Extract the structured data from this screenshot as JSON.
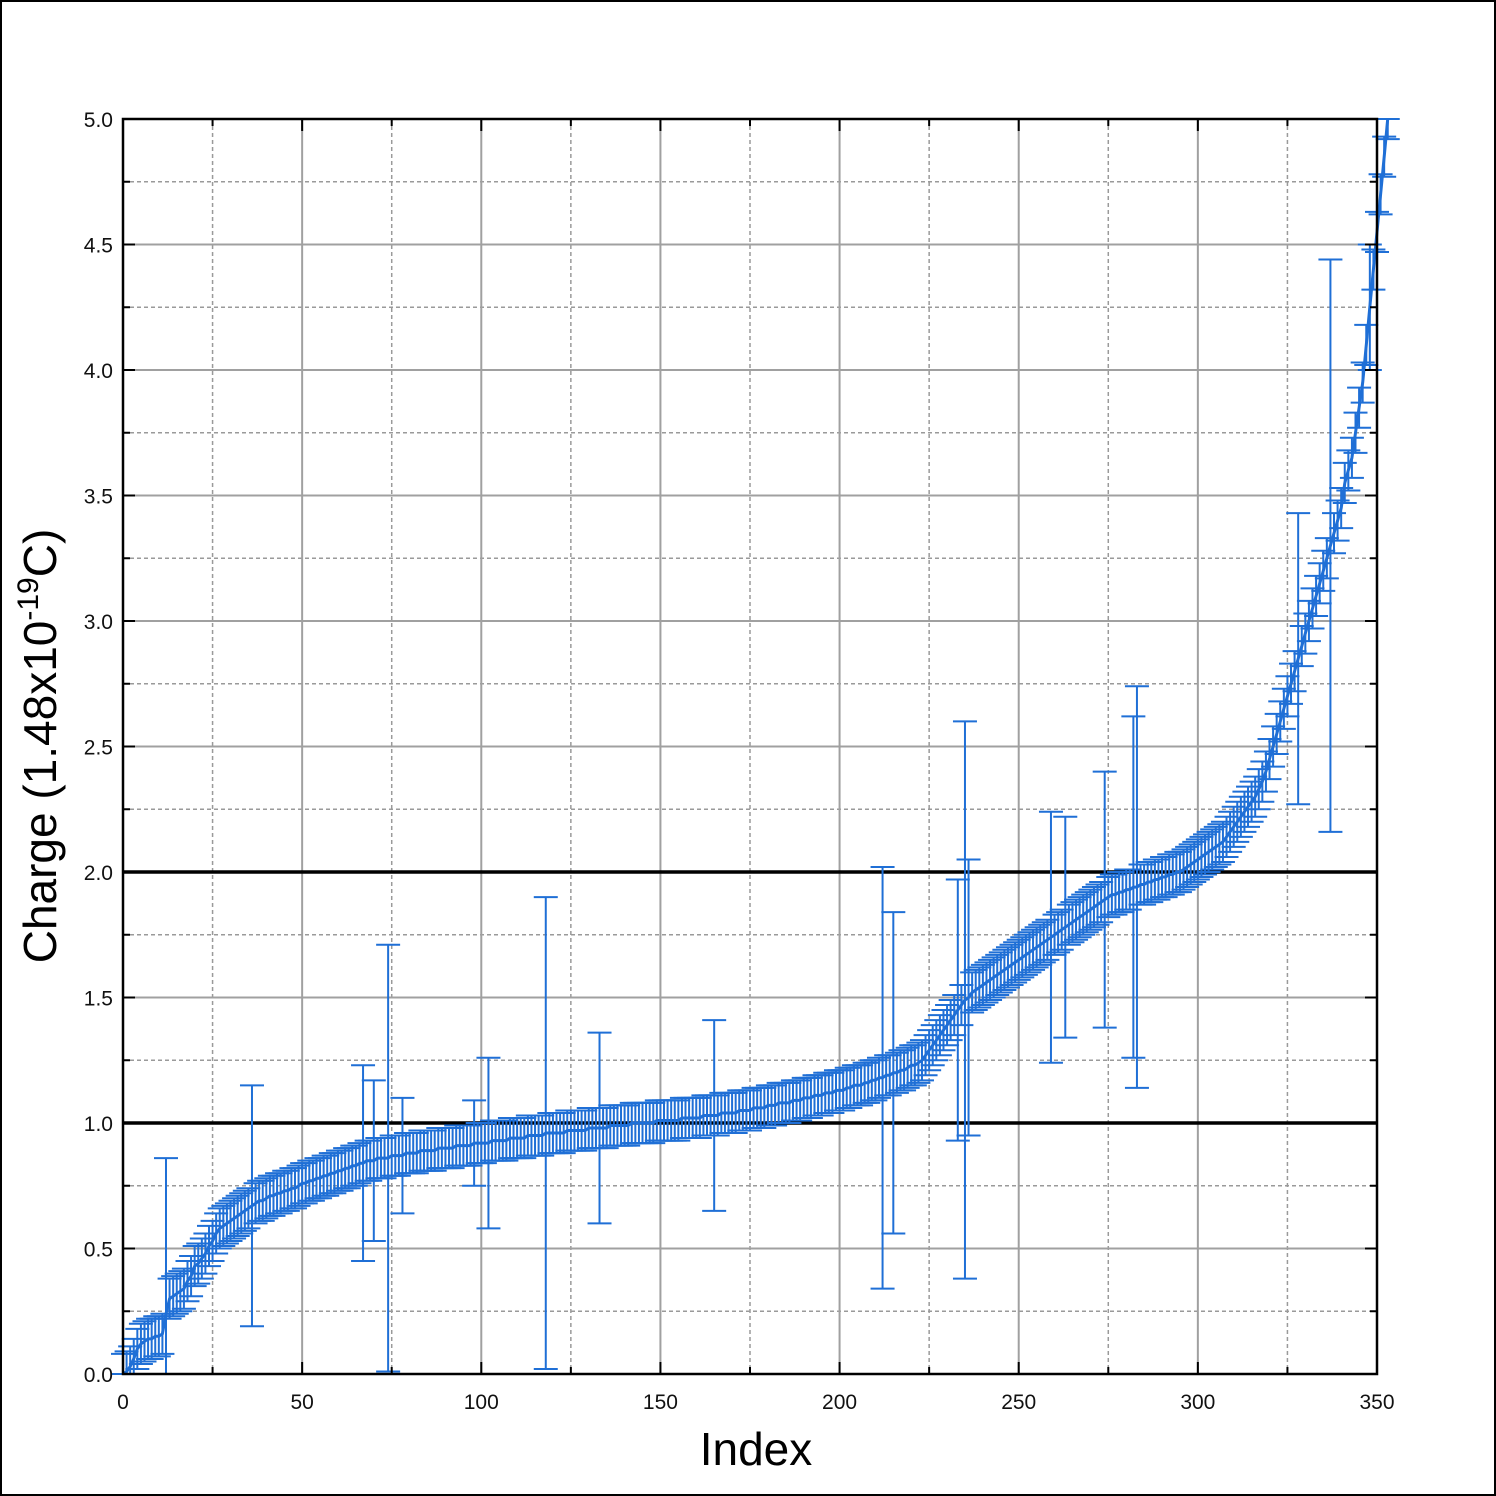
{
  "chart_data": {
    "type": "scatter",
    "xlabel": "Index",
    "ylabel": {
      "text": "Charge (1.48x10",
      "superscript": "-19",
      "suffix": "C)"
    },
    "xlim": [
      0,
      350
    ],
    "ylim": [
      0,
      5.0
    ],
    "x_ticks": [
      0,
      50,
      100,
      150,
      200,
      250,
      300,
      350
    ],
    "x_tick_labels": [
      "0",
      "50",
      "100",
      "150",
      "200",
      "250",
      "300",
      "350"
    ],
    "y_ticks": [
      0,
      0.5,
      1.0,
      1.5,
      2.0,
      2.5,
      3.0,
      3.5,
      4.0,
      4.5,
      5.0
    ],
    "y_tick_labels": [
      "0.0",
      "0.5",
      "1.0",
      "1.5",
      "2.0",
      "2.5",
      "3.0",
      "3.5",
      "4.0",
      "4.5",
      "5.0"
    ],
    "grid": true,
    "reference_lines_y": [
      1.0,
      2.0
    ],
    "series_color": "#1f6fd6",
    "series": [
      {
        "name": "",
        "style": "line-with-errorbars",
        "x_start": 0,
        "x_step": 1,
        "y": [
          0.0,
          0.01,
          0.03,
          0.06,
          0.1,
          0.12,
          0.13,
          0.14,
          0.14,
          0.15,
          0.15,
          0.16,
          0.24,
          0.3,
          0.31,
          0.32,
          0.33,
          0.34,
          0.37,
          0.39,
          0.43,
          0.44,
          0.46,
          0.48,
          0.51,
          0.53,
          0.56,
          0.58,
          0.59,
          0.6,
          0.61,
          0.62,
          0.63,
          0.64,
          0.65,
          0.66,
          0.67,
          0.68,
          0.69,
          0.69,
          0.7,
          0.71,
          0.71,
          0.72,
          0.72,
          0.73,
          0.73,
          0.74,
          0.74,
          0.75,
          0.76,
          0.76,
          0.77,
          0.77,
          0.78,
          0.78,
          0.79,
          0.79,
          0.8,
          0.8,
          0.81,
          0.81,
          0.82,
          0.82,
          0.83,
          0.83,
          0.84,
          0.84,
          0.85,
          0.85,
          0.85,
          0.86,
          0.86,
          0.86,
          0.86,
          0.87,
          0.87,
          0.87,
          0.87,
          0.88,
          0.88,
          0.88,
          0.88,
          0.89,
          0.89,
          0.89,
          0.89,
          0.89,
          0.9,
          0.9,
          0.9,
          0.9,
          0.9,
          0.91,
          0.91,
          0.91,
          0.91,
          0.91,
          0.92,
          0.92,
          0.92,
          0.92,
          0.92,
          0.93,
          0.93,
          0.93,
          0.93,
          0.93,
          0.94,
          0.94,
          0.94,
          0.94,
          0.94,
          0.95,
          0.95,
          0.95,
          0.95,
          0.95,
          0.96,
          0.96,
          0.96,
          0.96,
          0.96,
          0.96,
          0.97,
          0.97,
          0.97,
          0.97,
          0.97,
          0.97,
          0.98,
          0.98,
          0.98,
          0.98,
          0.98,
          0.98,
          0.99,
          0.99,
          0.99,
          0.99,
          0.99,
          0.99,
          1.0,
          1.0,
          1.0,
          1.0,
          1.0,
          1.0,
          1.0,
          1.01,
          1.01,
          1.01,
          1.01,
          1.01,
          1.01,
          1.01,
          1.02,
          1.02,
          1.02,
          1.02,
          1.02,
          1.02,
          1.03,
          1.03,
          1.03,
          1.03,
          1.03,
          1.04,
          1.04,
          1.04,
          1.04,
          1.04,
          1.05,
          1.05,
          1.05,
          1.05,
          1.06,
          1.06,
          1.06,
          1.06,
          1.07,
          1.07,
          1.07,
          1.08,
          1.08,
          1.08,
          1.08,
          1.09,
          1.09,
          1.09,
          1.1,
          1.1,
          1.1,
          1.11,
          1.11,
          1.11,
          1.12,
          1.12,
          1.12,
          1.13,
          1.13,
          1.13,
          1.14,
          1.14,
          1.15,
          1.15,
          1.15,
          1.16,
          1.16,
          1.17,
          1.17,
          1.18,
          1.18,
          1.19,
          1.19,
          1.2,
          1.2,
          1.21,
          1.21,
          1.22,
          1.23,
          1.23,
          1.24,
          1.25,
          1.27,
          1.29,
          1.31,
          1.33,
          1.35,
          1.37,
          1.39,
          1.41,
          1.43,
          1.45,
          1.47,
          1.49,
          1.5,
          1.52,
          1.53,
          1.54,
          1.55,
          1.56,
          1.57,
          1.58,
          1.59,
          1.6,
          1.61,
          1.62,
          1.63,
          1.64,
          1.65,
          1.66,
          1.67,
          1.68,
          1.69,
          1.7,
          1.71,
          1.72,
          1.73,
          1.74,
          1.75,
          1.76,
          1.77,
          1.78,
          1.79,
          1.8,
          1.81,
          1.82,
          1.83,
          1.84,
          1.85,
          1.86,
          1.87,
          1.88,
          1.89,
          1.9,
          1.91,
          1.91,
          1.92,
          1.92,
          1.93,
          1.93,
          1.94,
          1.94,
          1.95,
          1.95,
          1.96,
          1.96,
          1.97,
          1.97,
          1.98,
          1.98,
          1.99,
          1.99,
          2.0,
          2.0,
          2.01,
          2.02,
          2.03,
          2.04,
          2.05,
          2.06,
          2.07,
          2.08,
          2.09,
          2.1,
          2.11,
          2.12,
          2.14,
          2.16,
          2.18,
          2.2,
          2.22,
          2.24,
          2.26,
          2.28,
          2.3,
          2.33,
          2.36,
          2.4,
          2.45,
          2.5,
          2.55,
          2.6,
          2.65,
          2.7,
          2.75,
          2.8,
          2.85,
          2.9,
          2.95,
          3.0,
          3.05,
          3.1,
          3.15,
          3.2,
          3.25,
          3.3,
          3.35,
          3.4,
          3.45,
          3.55,
          3.6,
          3.65,
          3.75,
          3.85,
          3.95,
          4.1,
          4.25,
          4.4,
          4.55,
          4.7,
          4.85,
          5.0
        ],
        "y_error_default": 0.08,
        "y_error_overrides": [
          {
            "x": 12,
            "err": 0.62
          },
          {
            "x": 36,
            "err": 0.48
          },
          {
            "x": 67,
            "err": 0.39
          },
          {
            "x": 70,
            "err": 0.32
          },
          {
            "x": 74,
            "err": 0.85
          },
          {
            "x": 78,
            "err": 0.23
          },
          {
            "x": 98,
            "err": 0.17
          },
          {
            "x": 102,
            "err": 0.34
          },
          {
            "x": 118,
            "err": 0.94
          },
          {
            "x": 133,
            "err": 0.38
          },
          {
            "x": 165,
            "err": 0.38
          },
          {
            "x": 212,
            "err": 0.84
          },
          {
            "x": 215,
            "err": 0.64
          },
          {
            "x": 233,
            "err": 0.52
          },
          {
            "x": 235,
            "err": 1.11
          },
          {
            "x": 236,
            "err": 0.55
          },
          {
            "x": 259,
            "err": 0.5
          },
          {
            "x": 263,
            "err": 0.44
          },
          {
            "x": 274,
            "err": 0.51
          },
          {
            "x": 282,
            "err": 0.68
          },
          {
            "x": 283,
            "err": 0.8
          },
          {
            "x": 328,
            "err": 0.58
          },
          {
            "x": 337,
            "err": 1.14
          },
          {
            "x": 348,
            "err": 0.25
          }
        ]
      }
    ]
  }
}
